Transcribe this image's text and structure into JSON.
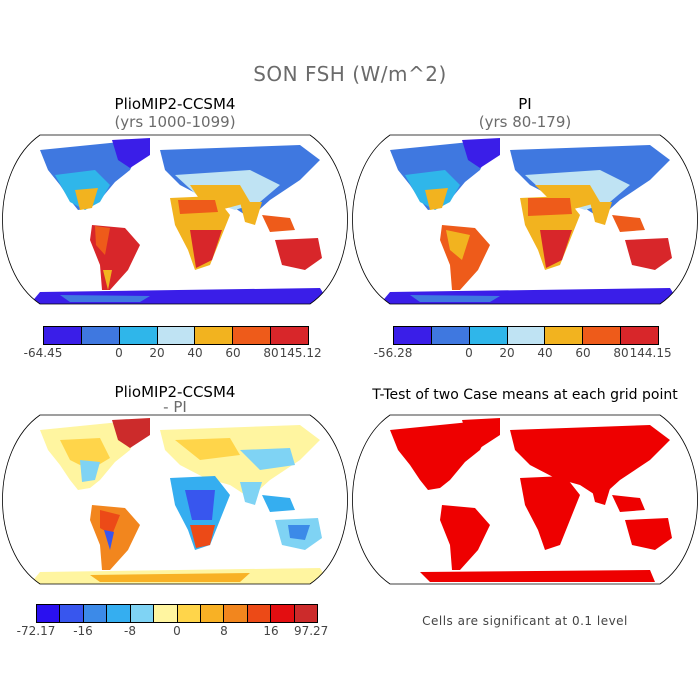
{
  "title": "SON FSH (W/m^2)",
  "panels": {
    "top_left": {
      "title": "PlioMIP2-CCSM4",
      "subtitle": "(yrs 1000-1099)"
    },
    "top_right": {
      "title": "PI",
      "subtitle": "(yrs 80-179)"
    },
    "bottom_left": {
      "title": "PlioMIP2-CCSM4",
      "subtitle": "- PI"
    },
    "bottom_right": {
      "title": "T-Test of two Case means at each grid point",
      "note": "Cells are significant at 0.1 level"
    }
  },
  "colorbars": {
    "top_left": {
      "colors": [
        "#3a1ee8",
        "#3f78e0",
        "#2fb6ea",
        "#bfe3f3",
        "#f2b31f",
        "#ee5b1a",
        "#d8262a"
      ],
      "labels": [
        "-64.45",
        "0",
        "20",
        "40",
        "60",
        "80",
        "145.12"
      ]
    },
    "top_right": {
      "colors": [
        "#3a1ee8",
        "#3f78e0",
        "#2fb6ea",
        "#bfe3f3",
        "#f2b31f",
        "#ee5b1a",
        "#d8262a"
      ],
      "labels": [
        "-56.28",
        "0",
        "20",
        "40",
        "60",
        "80",
        "144.15"
      ]
    },
    "bottom_left": {
      "colors": [
        "#2a10f0",
        "#3856ee",
        "#3c8ae8",
        "#35aef0",
        "#7fd3f4",
        "#fff5a0",
        "#ffd54a",
        "#f8b125",
        "#f2861e",
        "#ec4a17",
        "#e30e11",
        "#cc2b2b"
      ],
      "labels": [
        "-72.17",
        "-16",
        "-8",
        "0",
        "8",
        "16",
        "97.27"
      ]
    }
  },
  "map_colors": {
    "ocean": "#ffffff",
    "coast": "#000000",
    "significant": "#ee0000"
  }
}
